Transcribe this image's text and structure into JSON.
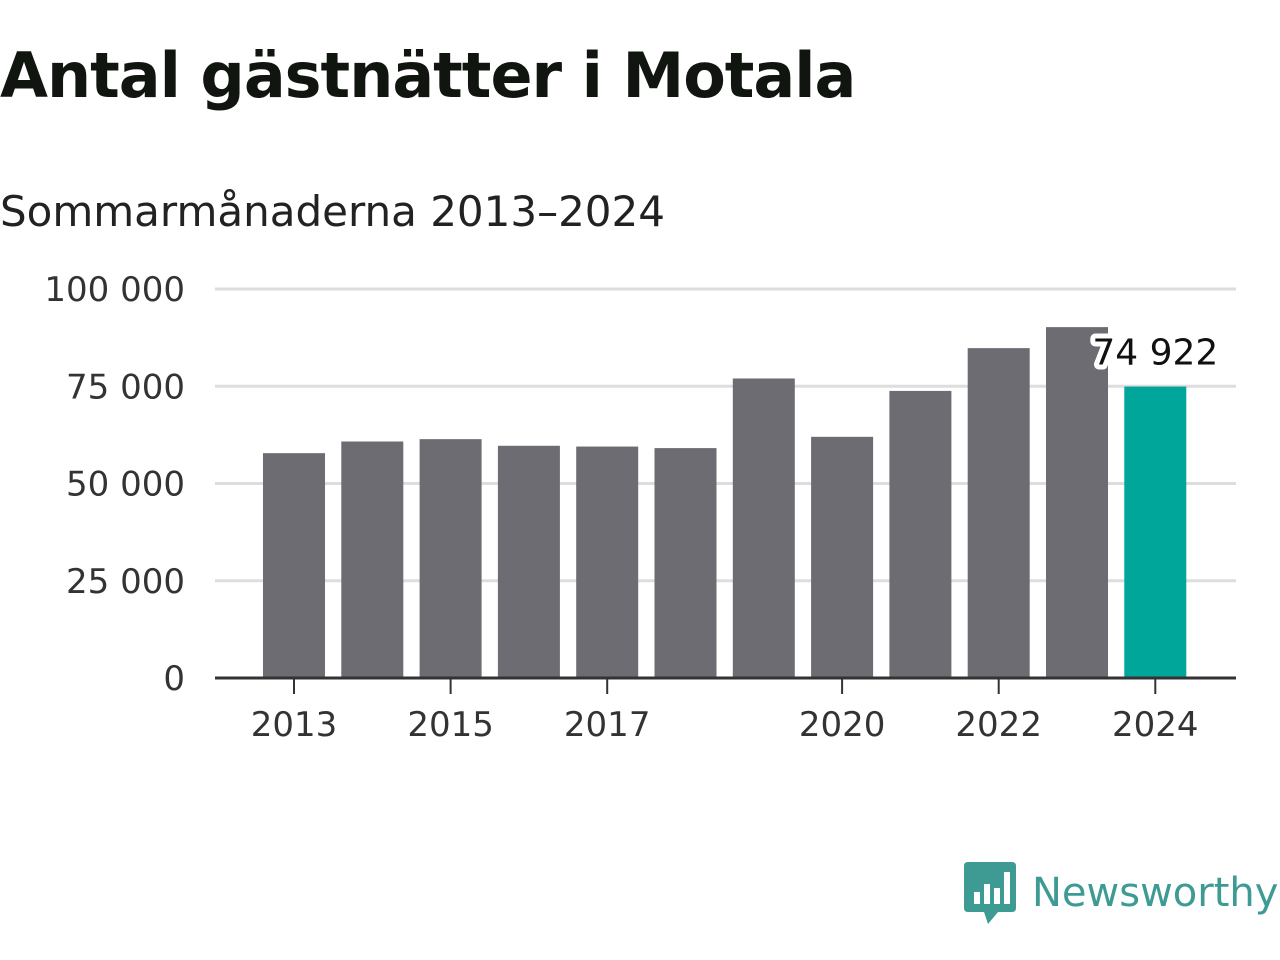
{
  "header": {
    "title": "Antal gästnätter i Motala",
    "subtitle": "Sommarmånaderna 2013–2024"
  },
  "logo": {
    "text": "Newsworthy",
    "icon": "bar-chart-speech-bubble-icon",
    "color": "#3d9b94"
  },
  "colors": {
    "bar": "#6d6c72",
    "highlight": "#00a69a",
    "grid": "#dddddd",
    "axis": "#333333"
  },
  "chart_data": {
    "type": "bar",
    "title": "Antal gästnätter i Motala",
    "subtitle": "Sommarmånaderna 2013–2024",
    "xlabel": "",
    "ylabel": "",
    "categories": [
      2013,
      2014,
      2015,
      2016,
      2017,
      2018,
      2019,
      2020,
      2021,
      2022,
      2023,
      2024
    ],
    "values": [
      57800,
      60800,
      61400,
      59700,
      59500,
      59100,
      77000,
      62000,
      73800,
      84800,
      90200,
      74922
    ],
    "highlight_index": 11,
    "value_label": "74 922",
    "x_tick_labels": [
      "2013",
      "2015",
      "2017",
      "2020",
      "2022",
      "2024"
    ],
    "y_ticks": [
      0,
      25000,
      50000,
      75000,
      100000
    ],
    "y_tick_labels": [
      "0",
      "25 000",
      "50 000",
      "75 000",
      "100 000"
    ],
    "ylim": [
      0,
      100000
    ],
    "grid": true,
    "legend": "none"
  }
}
